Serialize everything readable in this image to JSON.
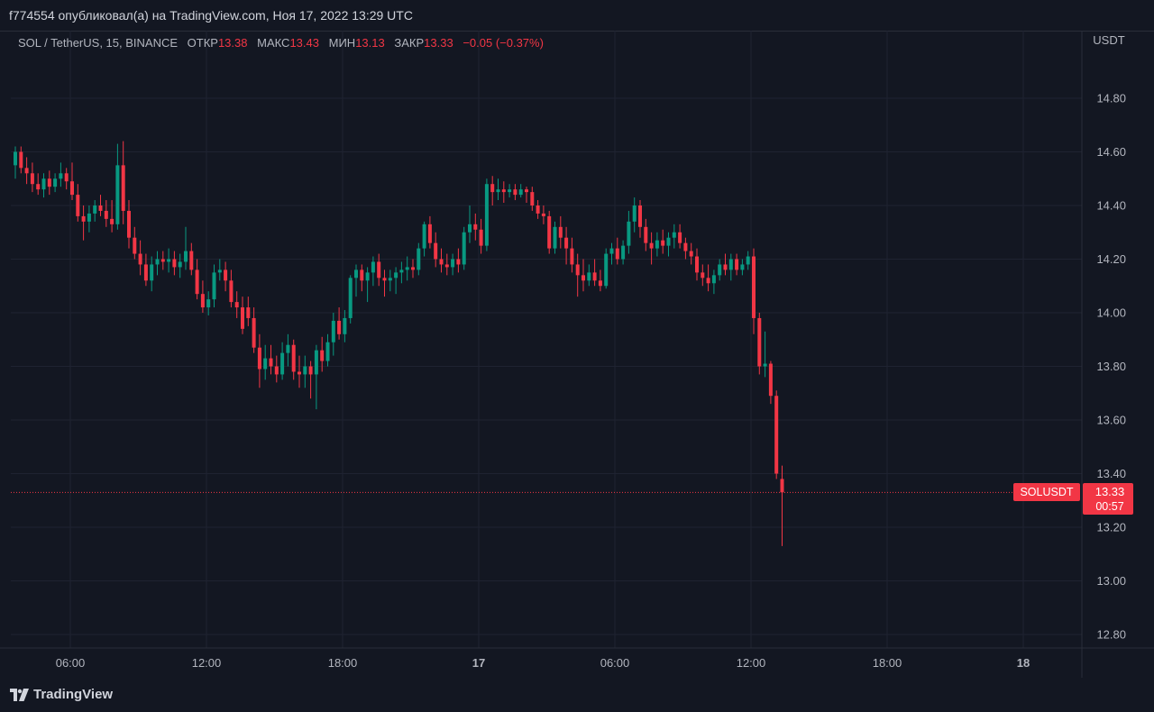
{
  "header": {
    "publish_text": "f774554 опубликовал(а) на TradingView.com, Ноя 17, 2022 13:29 UTC"
  },
  "legend": {
    "symbol": "SOL / TetherUS, 15, BINANCE",
    "open_label": "ОТКР",
    "open_value": "13.38",
    "high_label": "МАКС",
    "high_value": "13.43",
    "low_label": "МИН",
    "low_value": "13.13",
    "close_label": "ЗАКР",
    "close_value": "13.33",
    "change": "−0.05 (−0.37%)"
  },
  "price_axis": {
    "currency": "USDT",
    "ticks": [
      "14.80",
      "14.60",
      "14.40",
      "14.20",
      "14.00",
      "13.80",
      "13.60",
      "13.40",
      "13.20",
      "13.00",
      "12.80"
    ]
  },
  "time_axis": {
    "ticks": [
      {
        "label": "06:00",
        "bold": false
      },
      {
        "label": "12:00",
        "bold": false
      },
      {
        "label": "18:00",
        "bold": false
      },
      {
        "label": "17",
        "bold": true
      },
      {
        "label": "06:00",
        "bold": false
      },
      {
        "label": "12:00",
        "bold": false
      },
      {
        "label": "18:00",
        "bold": false
      },
      {
        "label": "18",
        "bold": true
      }
    ]
  },
  "price_badge": {
    "symbol": "SOLUSDT",
    "price": "13.33",
    "countdown": "00:57"
  },
  "footer": {
    "logo_text": "TradingView"
  },
  "colors": {
    "background": "#131722",
    "up": "#089981",
    "down": "#f23645",
    "grid": "#1f2331",
    "axis_text": "#b2b5be"
  },
  "chart_data": {
    "type": "candlestick",
    "symbol": "SOL / TetherUS",
    "interval": "15",
    "exchange": "BINANCE",
    "ylim": [
      12.72,
      14.95
    ],
    "y_ticks": [
      14.8,
      14.6,
      14.4,
      14.2,
      14.0,
      13.8,
      13.6,
      13.4,
      13.2,
      13.0,
      12.8
    ],
    "last_price": 13.33,
    "grid": true,
    "candles": [
      [
        14.55,
        14.62,
        14.5,
        14.6
      ],
      [
        14.6,
        14.62,
        14.52,
        14.54
      ],
      [
        14.54,
        14.58,
        14.48,
        14.52
      ],
      [
        14.52,
        14.56,
        14.45,
        14.48
      ],
      [
        14.48,
        14.52,
        14.44,
        14.46
      ],
      [
        14.46,
        14.52,
        14.43,
        14.5
      ],
      [
        14.5,
        14.53,
        14.44,
        14.47
      ],
      [
        14.47,
        14.52,
        14.45,
        14.5
      ],
      [
        14.5,
        14.56,
        14.47,
        14.52
      ],
      [
        14.52,
        14.54,
        14.46,
        14.49
      ],
      [
        14.49,
        14.56,
        14.42,
        14.44
      ],
      [
        14.44,
        14.48,
        14.34,
        14.36
      ],
      [
        14.36,
        14.4,
        14.27,
        14.34
      ],
      [
        14.34,
        14.4,
        14.3,
        14.37
      ],
      [
        14.37,
        14.42,
        14.34,
        14.4
      ],
      [
        14.4,
        14.44,
        14.36,
        14.38
      ],
      [
        14.38,
        14.42,
        14.32,
        14.35
      ],
      [
        14.35,
        14.42,
        14.3,
        14.33
      ],
      [
        14.33,
        14.63,
        14.31,
        14.55
      ],
      [
        14.55,
        14.64,
        14.33,
        14.38
      ],
      [
        14.38,
        14.42,
        14.24,
        14.28
      ],
      [
        14.28,
        14.32,
        14.2,
        14.22
      ],
      [
        14.22,
        14.27,
        14.14,
        14.18
      ],
      [
        14.18,
        14.22,
        14.1,
        14.12
      ],
      [
        14.12,
        14.21,
        14.08,
        14.18
      ],
      [
        14.18,
        14.23,
        14.14,
        14.2
      ],
      [
        14.2,
        14.23,
        14.16,
        14.19
      ],
      [
        14.19,
        14.24,
        14.15,
        14.2
      ],
      [
        14.2,
        14.23,
        14.14,
        14.17
      ],
      [
        14.17,
        14.22,
        14.13,
        14.19
      ],
      [
        14.19,
        14.32,
        14.16,
        14.23
      ],
      [
        14.23,
        14.26,
        14.14,
        14.16
      ],
      [
        14.16,
        14.2,
        14.05,
        14.07
      ],
      [
        14.07,
        14.12,
        14.0,
        14.02
      ],
      [
        14.02,
        14.08,
        13.99,
        14.05
      ],
      [
        14.05,
        14.18,
        14.02,
        14.15
      ],
      [
        14.15,
        14.2,
        14.12,
        14.16
      ],
      [
        14.16,
        14.19,
        14.08,
        14.12
      ],
      [
        14.12,
        14.16,
        14.02,
        14.04
      ],
      [
        14.04,
        14.08,
        13.98,
        14.02
      ],
      [
        14.02,
        14.06,
        13.92,
        13.94
      ],
      [
        14.02,
        14.06,
        13.95,
        13.98
      ],
      [
        13.98,
        14.02,
        13.85,
        13.87
      ],
      [
        13.87,
        13.92,
        13.72,
        13.79
      ],
      [
        13.79,
        13.88,
        13.75,
        13.83
      ],
      [
        13.83,
        13.88,
        13.77,
        13.8
      ],
      [
        13.8,
        13.84,
        13.74,
        13.77
      ],
      [
        13.77,
        13.89,
        13.75,
        13.85
      ],
      [
        13.85,
        13.92,
        13.8,
        13.88
      ],
      [
        13.88,
        13.9,
        13.75,
        13.78
      ],
      [
        13.78,
        13.84,
        13.72,
        13.77
      ],
      [
        13.77,
        13.84,
        13.72,
        13.8
      ],
      [
        13.8,
        13.82,
        13.68,
        13.77
      ],
      [
        13.77,
        13.88,
        13.64,
        13.86
      ],
      [
        13.86,
        13.91,
        13.78,
        13.82
      ],
      [
        13.82,
        13.92,
        13.8,
        13.89
      ],
      [
        13.89,
        14.0,
        13.84,
        13.97
      ],
      [
        13.97,
        14.02,
        13.9,
        13.92
      ],
      [
        13.92,
        14.01,
        13.89,
        13.98
      ],
      [
        13.98,
        14.14,
        13.96,
        14.13
      ],
      [
        14.13,
        14.18,
        14.06,
        14.16
      ],
      [
        14.16,
        14.18,
        14.08,
        14.12
      ],
      [
        14.12,
        14.17,
        14.04,
        14.15
      ],
      [
        14.15,
        14.21,
        14.1,
        14.19
      ],
      [
        14.19,
        14.22,
        14.1,
        14.13
      ],
      [
        14.13,
        14.16,
        14.06,
        14.12
      ],
      [
        14.12,
        14.16,
        14.08,
        14.13
      ],
      [
        14.13,
        14.17,
        14.07,
        14.15
      ],
      [
        14.15,
        14.19,
        14.11,
        14.16
      ],
      [
        14.16,
        14.21,
        14.12,
        14.17
      ],
      [
        14.17,
        14.2,
        14.13,
        14.16
      ],
      [
        14.16,
        14.26,
        14.14,
        14.24
      ],
      [
        14.24,
        14.34,
        14.21,
        14.33
      ],
      [
        14.33,
        14.36,
        14.24,
        14.26
      ],
      [
        14.26,
        14.3,
        14.17,
        14.2
      ],
      [
        14.2,
        14.24,
        14.15,
        14.18
      ],
      [
        14.18,
        14.22,
        14.14,
        14.17
      ],
      [
        14.17,
        14.22,
        14.14,
        14.2
      ],
      [
        14.2,
        14.24,
        14.15,
        14.18
      ],
      [
        14.18,
        14.32,
        14.16,
        14.3
      ],
      [
        14.3,
        14.4,
        14.26,
        14.33
      ],
      [
        14.33,
        14.37,
        14.27,
        14.31
      ],
      [
        14.31,
        14.35,
        14.22,
        14.25
      ],
      [
        14.25,
        14.5,
        14.23,
        14.48
      ],
      [
        14.48,
        14.51,
        14.4,
        14.45
      ],
      [
        14.45,
        14.5,
        14.42,
        14.46
      ],
      [
        14.46,
        14.49,
        14.41,
        14.45
      ],
      [
        14.45,
        14.48,
        14.43,
        14.46
      ],
      [
        14.46,
        14.48,
        14.42,
        14.44
      ],
      [
        14.44,
        14.48,
        14.43,
        14.46
      ],
      [
        14.46,
        14.47,
        14.41,
        14.45
      ],
      [
        14.45,
        14.47,
        14.38,
        14.4
      ],
      [
        14.4,
        14.42,
        14.35,
        14.37
      ],
      [
        14.37,
        14.4,
        14.33,
        14.36
      ],
      [
        14.36,
        14.38,
        14.22,
        14.24
      ],
      [
        14.24,
        14.34,
        14.22,
        14.32
      ],
      [
        14.32,
        14.36,
        14.24,
        14.28
      ],
      [
        14.28,
        14.32,
        14.18,
        14.24
      ],
      [
        14.24,
        14.28,
        14.15,
        14.18
      ],
      [
        14.18,
        14.22,
        14.06,
        14.14
      ],
      [
        14.14,
        14.2,
        14.08,
        14.12
      ],
      [
        14.12,
        14.18,
        14.1,
        14.15
      ],
      [
        14.15,
        14.2,
        14.1,
        14.12
      ],
      [
        14.12,
        14.16,
        14.08,
        14.1
      ],
      [
        14.1,
        14.24,
        14.09,
        14.22
      ],
      [
        14.22,
        14.26,
        14.18,
        14.24
      ],
      [
        14.24,
        14.28,
        14.18,
        14.2
      ],
      [
        14.2,
        14.27,
        14.18,
        14.25
      ],
      [
        14.25,
        14.38,
        14.22,
        14.34
      ],
      [
        14.34,
        14.43,
        14.3,
        14.4
      ],
      [
        14.4,
        14.42,
        14.28,
        14.32
      ],
      [
        14.32,
        14.35,
        14.23,
        14.26
      ],
      [
        14.26,
        14.3,
        14.18,
        14.24
      ],
      [
        14.24,
        14.3,
        14.21,
        14.27
      ],
      [
        14.27,
        14.31,
        14.22,
        14.25
      ],
      [
        14.25,
        14.3,
        14.21,
        14.28
      ],
      [
        14.28,
        14.33,
        14.24,
        14.3
      ],
      [
        14.3,
        14.33,
        14.24,
        14.26
      ],
      [
        14.26,
        14.28,
        14.2,
        14.23
      ],
      [
        14.23,
        14.26,
        14.18,
        14.21
      ],
      [
        14.21,
        14.24,
        14.12,
        14.15
      ],
      [
        14.15,
        14.18,
        14.1,
        14.13
      ],
      [
        14.13,
        14.18,
        14.08,
        14.11
      ],
      [
        14.11,
        14.16,
        14.07,
        14.14
      ],
      [
        14.14,
        14.2,
        14.12,
        14.18
      ],
      [
        14.18,
        14.22,
        14.14,
        14.16
      ],
      [
        14.16,
        14.22,
        14.12,
        14.2
      ],
      [
        14.2,
        14.22,
        14.14,
        14.16
      ],
      [
        14.16,
        14.2,
        14.14,
        14.18
      ],
      [
        14.18,
        14.23,
        14.16,
        14.21
      ],
      [
        14.21,
        14.24,
        13.92,
        13.98
      ],
      [
        13.98,
        14.0,
        13.77,
        13.8
      ],
      [
        13.8,
        13.93,
        13.76,
        13.81
      ],
      [
        13.81,
        13.82,
        13.66,
        13.69
      ],
      [
        13.69,
        13.71,
        13.38,
        13.4
      ],
      [
        13.38,
        13.43,
        13.13,
        13.33
      ]
    ]
  }
}
